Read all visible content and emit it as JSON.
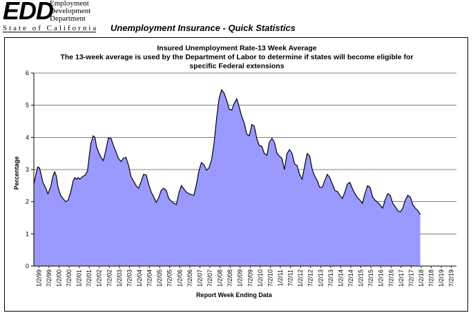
{
  "header": {
    "logo_main": "EDD",
    "logo_lines": [
      "Employment",
      "Development",
      "Department"
    ],
    "logo_state": "State of California",
    "page_title": "Unemployment Insurance - Quick Statistics"
  },
  "colors": {
    "area_fill": "#9999ff",
    "line": "#000000",
    "grid": "#000000"
  },
  "chart_data": {
    "type": "area",
    "title_lines": [
      "Insured Unemployment Rate-13 Week Average",
      "The 13-week average is used by the Department of Labor to determine if states will become eligible for",
      "specific Federal extensions"
    ],
    "xlabel": "Report Week Ending Data",
    "ylabel": "Percentage",
    "ylim": [
      0,
      6
    ],
    "yticks": [
      0,
      1,
      2,
      3,
      4,
      5,
      6
    ],
    "grid": "horizontal",
    "legend": "none",
    "x_start": "1/2/99",
    "x_end": "12/2019",
    "x_tick_labels": [
      "1/2/99",
      "7/2/99",
      "1/2/00",
      "7/2/00",
      "1/2/01",
      "7/2/01",
      "1/2/02",
      "7/2/02",
      "1/2/03",
      "7/2/03",
      "1/2/04",
      "7/2/04",
      "1/2/05",
      "7/2/05",
      "1/2/06",
      "7/2/06",
      "1/2/07",
      "7/2/07",
      "1/2/08",
      "7/2/08",
      "1/2/09",
      "7/2/09",
      "1/2/10",
      "7/2/10",
      "1/2/11",
      "7/2/11",
      "1/2/12",
      "7/2/12",
      "1/2/13",
      "7/2/13",
      "1/2/14",
      "7/2/14",
      "1/2/15",
      "7/2/15",
      "1/2/16",
      "7/2/16",
      "1/2/17",
      "7/2/17",
      "1/2/18",
      "7/2/18",
      "1/2/19",
      "7/2/19"
    ],
    "series": [
      {
        "points": [
          [
            "1999-01-02",
            2.55
          ],
          [
            "1999-02-15",
            2.9
          ],
          [
            "1999-03-15",
            3.08
          ],
          [
            "1999-04-15",
            3.05
          ],
          [
            "1999-05-15",
            2.85
          ],
          [
            "1999-06-15",
            2.6
          ],
          [
            "1999-08-01",
            2.45
          ],
          [
            "1999-09-15",
            2.25
          ],
          [
            "1999-11-01",
            2.45
          ],
          [
            "1999-12-15",
            2.8
          ],
          [
            "2000-01-15",
            2.93
          ],
          [
            "2000-02-15",
            2.8
          ],
          [
            "2000-03-15",
            2.45
          ],
          [
            "2000-05-01",
            2.2
          ],
          [
            "2000-06-15",
            2.1
          ],
          [
            "2000-08-01",
            2.0
          ],
          [
            "2000-09-15",
            2.05
          ],
          [
            "2000-11-01",
            2.3
          ],
          [
            "2000-12-15",
            2.65
          ],
          [
            "2001-01-15",
            2.75
          ],
          [
            "2001-02-15",
            2.7
          ],
          [
            "2001-03-15",
            2.75
          ],
          [
            "2001-04-15",
            2.7
          ],
          [
            "2001-06-01",
            2.78
          ],
          [
            "2001-07-15",
            2.82
          ],
          [
            "2001-09-01",
            2.95
          ],
          [
            "2001-10-01",
            3.4
          ],
          [
            "2001-11-01",
            3.8
          ],
          [
            "2001-12-15",
            4.05
          ],
          [
            "2002-01-15",
            4.0
          ],
          [
            "2002-02-15",
            3.7
          ],
          [
            "2002-04-01",
            3.5
          ],
          [
            "2002-05-15",
            3.35
          ],
          [
            "2002-06-15",
            3.28
          ],
          [
            "2002-08-01",
            3.6
          ],
          [
            "2002-09-15",
            3.98
          ],
          [
            "2002-11-01",
            3.97
          ],
          [
            "2002-12-15",
            3.75
          ],
          [
            "2003-02-01",
            3.55
          ],
          [
            "2003-03-15",
            3.35
          ],
          [
            "2003-05-01",
            3.25
          ],
          [
            "2003-06-15",
            3.35
          ],
          [
            "2003-08-01",
            3.38
          ],
          [
            "2003-09-15",
            3.15
          ],
          [
            "2003-11-01",
            2.78
          ],
          [
            "2003-12-15",
            2.65
          ],
          [
            "2004-02-01",
            2.5
          ],
          [
            "2004-03-15",
            2.42
          ],
          [
            "2004-05-01",
            2.62
          ],
          [
            "2004-06-15",
            2.85
          ],
          [
            "2004-08-01",
            2.83
          ],
          [
            "2004-09-15",
            2.55
          ],
          [
            "2004-11-01",
            2.3
          ],
          [
            "2004-12-15",
            2.15
          ],
          [
            "2005-02-01",
            1.98
          ],
          [
            "2005-03-15",
            2.12
          ],
          [
            "2005-05-01",
            2.35
          ],
          [
            "2005-06-15",
            2.42
          ],
          [
            "2005-08-01",
            2.35
          ],
          [
            "2005-09-15",
            2.1
          ],
          [
            "2005-11-01",
            2.02
          ],
          [
            "2005-12-15",
            1.95
          ],
          [
            "2006-02-01",
            1.92
          ],
          [
            "2006-03-15",
            2.25
          ],
          [
            "2006-05-01",
            2.5
          ],
          [
            "2006-06-15",
            2.4
          ],
          [
            "2006-08-01",
            2.3
          ],
          [
            "2006-09-15",
            2.25
          ],
          [
            "2006-11-01",
            2.22
          ],
          [
            "2006-12-15",
            2.2
          ],
          [
            "2007-02-01",
            2.55
          ],
          [
            "2007-03-15",
            2.95
          ],
          [
            "2007-05-01",
            3.22
          ],
          [
            "2007-06-15",
            3.15
          ],
          [
            "2007-08-01",
            2.98
          ],
          [
            "2007-09-15",
            3.05
          ],
          [
            "2007-11-01",
            3.3
          ],
          [
            "2007-12-15",
            3.8
          ],
          [
            "2008-02-01",
            4.6
          ],
          [
            "2008-03-15",
            5.2
          ],
          [
            "2008-05-01",
            5.48
          ],
          [
            "2008-06-15",
            5.38
          ],
          [
            "2008-08-01",
            5.15
          ],
          [
            "2008-09-15",
            4.88
          ],
          [
            "2008-11-01",
            4.85
          ],
          [
            "2008-12-15",
            5.05
          ],
          [
            "2009-02-01",
            5.2
          ],
          [
            "2009-03-15",
            4.95
          ],
          [
            "2009-05-01",
            4.65
          ],
          [
            "2009-06-15",
            4.45
          ],
          [
            "2009-08-01",
            4.1
          ],
          [
            "2009-09-15",
            4.05
          ],
          [
            "2009-11-01",
            4.4
          ],
          [
            "2009-12-15",
            4.35
          ],
          [
            "2010-02-01",
            3.95
          ],
          [
            "2010-03-15",
            3.75
          ],
          [
            "2010-05-01",
            3.72
          ],
          [
            "2010-06-15",
            3.5
          ],
          [
            "2010-08-01",
            3.45
          ],
          [
            "2010-09-15",
            3.85
          ],
          [
            "2010-11-01",
            3.97
          ],
          [
            "2010-12-15",
            3.85
          ],
          [
            "2011-02-01",
            3.5
          ],
          [
            "2011-03-15",
            3.42
          ],
          [
            "2011-05-01",
            3.35
          ],
          [
            "2011-06-15",
            3.0
          ],
          [
            "2011-08-01",
            3.5
          ],
          [
            "2011-09-15",
            3.62
          ],
          [
            "2011-11-01",
            3.5
          ],
          [
            "2011-12-15",
            3.18
          ],
          [
            "2012-02-01",
            3.12
          ],
          [
            "2012-03-15",
            2.85
          ],
          [
            "2012-05-01",
            2.7
          ],
          [
            "2012-06-15",
            3.1
          ],
          [
            "2012-08-01",
            3.5
          ],
          [
            "2012-09-15",
            3.42
          ],
          [
            "2012-11-01",
            3.0
          ],
          [
            "2012-12-15",
            2.8
          ],
          [
            "2013-02-01",
            2.65
          ],
          [
            "2013-03-15",
            2.45
          ],
          [
            "2013-05-01",
            2.45
          ],
          [
            "2013-06-15",
            2.65
          ],
          [
            "2013-08-01",
            2.85
          ],
          [
            "2013-09-15",
            2.75
          ],
          [
            "2013-11-01",
            2.55
          ],
          [
            "2013-12-15",
            2.35
          ],
          [
            "2014-02-01",
            2.32
          ],
          [
            "2014-03-15",
            2.2
          ],
          [
            "2014-05-01",
            2.1
          ],
          [
            "2014-06-15",
            2.3
          ],
          [
            "2014-08-01",
            2.55
          ],
          [
            "2014-09-15",
            2.6
          ],
          [
            "2014-11-01",
            2.4
          ],
          [
            "2014-12-15",
            2.25
          ],
          [
            "2015-02-01",
            2.12
          ],
          [
            "2015-03-15",
            2.05
          ],
          [
            "2015-05-01",
            1.95
          ],
          [
            "2015-06-15",
            2.25
          ],
          [
            "2015-08-01",
            2.5
          ],
          [
            "2015-09-15",
            2.45
          ],
          [
            "2015-11-01",
            2.15
          ],
          [
            "2015-12-15",
            2.05
          ],
          [
            "2016-02-01",
            1.98
          ],
          [
            "2016-03-15",
            1.9
          ],
          [
            "2016-05-01",
            1.8
          ],
          [
            "2016-06-15",
            2.05
          ],
          [
            "2016-08-01",
            2.25
          ],
          [
            "2016-09-15",
            2.2
          ],
          [
            "2016-11-01",
            1.95
          ],
          [
            "2016-12-15",
            1.85
          ],
          [
            "2017-02-01",
            1.72
          ],
          [
            "2017-03-15",
            1.68
          ],
          [
            "2017-05-01",
            1.8
          ],
          [
            "2017-06-15",
            2.05
          ],
          [
            "2017-08-01",
            2.2
          ],
          [
            "2017-09-15",
            2.15
          ],
          [
            "2017-11-01",
            1.9
          ],
          [
            "2017-12-15",
            1.8
          ],
          [
            "2018-02-01",
            1.72
          ],
          [
            "2018-03-15",
            1.6
          ]
        ]
      }
    ]
  }
}
